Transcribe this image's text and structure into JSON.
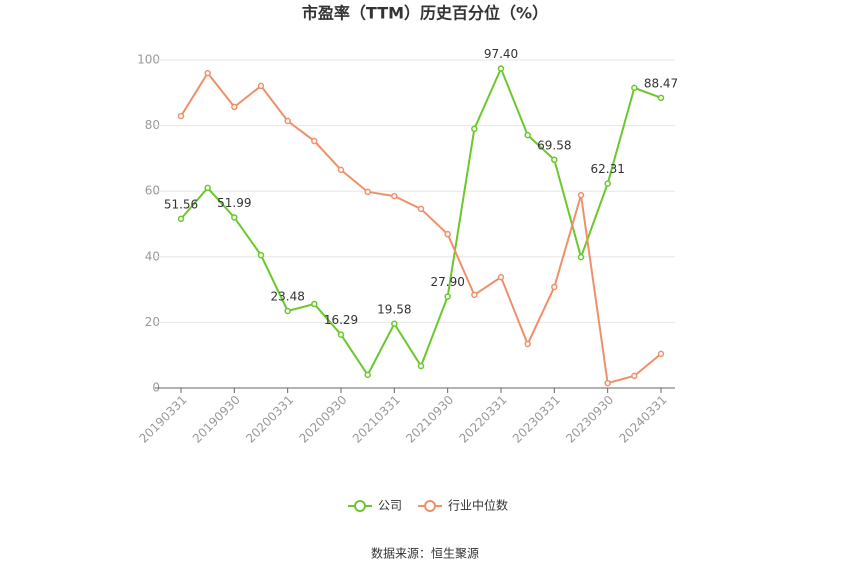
{
  "chart_data": {
    "type": "line",
    "title": "市盈率（TTM）历史百分位（%）",
    "categories": [
      "20190331",
      null,
      "20190930",
      null,
      "20200331",
      null,
      "20200930",
      null,
      "20210331",
      null,
      "20210930",
      null,
      "20220331",
      null,
      "20230331",
      null,
      "20230930",
      null,
      "20240331"
    ],
    "series": [
      {
        "name": "公司",
        "color": "#6ac82d",
        "values": [
          51.56,
          61.0,
          51.99,
          40.5,
          23.48,
          25.6,
          16.29,
          4.0,
          19.58,
          6.7,
          27.9,
          79.0,
          97.4,
          77.1,
          69.58,
          39.9,
          62.31,
          91.5,
          88.47
        ],
        "value_labels": [
          "51.56",
          null,
          "51.99",
          null,
          "23.48",
          null,
          "16.29",
          null,
          "19.58",
          null,
          "27.90",
          null,
          "97.40",
          null,
          "69.58",
          null,
          "62.31",
          null,
          "88.47"
        ]
      },
      {
        "name": "行业中位数",
        "color": "#f0906a",
        "values": [
          82.9,
          96.0,
          85.7,
          92.1,
          81.4,
          75.3,
          66.5,
          59.8,
          58.5,
          54.6,
          46.9,
          28.4,
          33.8,
          13.4,
          30.8,
          58.8,
          1.5,
          3.7,
          10.4
        ]
      }
    ],
    "ylim": [
      0,
      100
    ],
    "yticks": [
      0,
      20,
      40,
      60,
      80,
      100
    ],
    "grid": true,
    "source": "数据来源：恒生聚源"
  }
}
